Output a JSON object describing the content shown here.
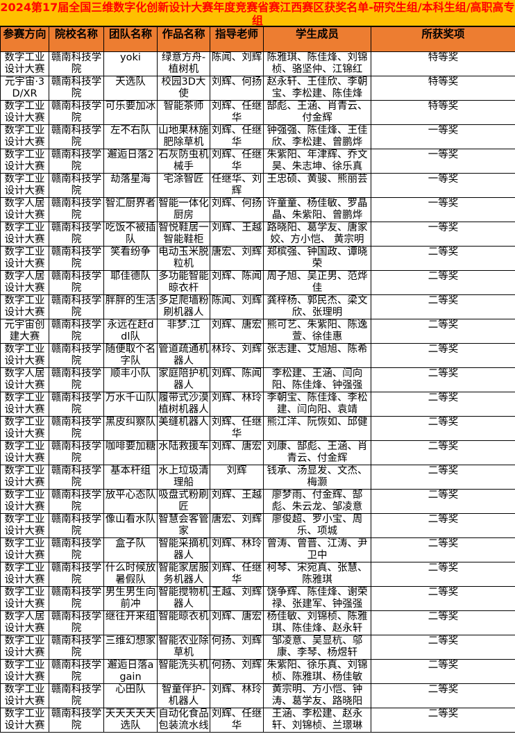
{
  "title": "2024第17届全国三维数字化创新设计大赛年度竞赛省赛江西赛区获奖名单-研究生组/本科生组/高职高专组",
  "colors": {
    "title_bg": "#FFC000",
    "title_text": "#FF0000",
    "header_bg": "#ED7D31"
  },
  "headers": [
    "参赛方向",
    "院校名称",
    "团队名称",
    "作品名称",
    "指导老师",
    "学生成员",
    "所获奖项"
  ],
  "rows": [
    [
      "数字工业设计大赛",
      "赣南科技学院",
      "yoki",
      "绿意方舟-植树机",
      "陈闻、刘辉",
      "陈雅琪、陈佳烽、刘锦桢、骆坚仲、江锦红",
      "特等奖"
    ],
    [
      "元宇宙·3D/XR",
      "赣南科技学院",
      "天选队",
      "校园3D大使",
      "刘辉、何扬",
      "赵永轩、王佳欣、李朝宝、李松建、陈佳烽",
      "特等奖"
    ],
    [
      "数字工业设计大赛",
      "赣南科技学院",
      "可乐要加冰",
      "智能茶师",
      "刘辉、任继华",
      "郜彪、王涵、肖青云、付金辉",
      "特等奖"
    ],
    [
      "数字工业设计大赛",
      "赣南科技学院",
      "左不右队",
      "山地果林施肥除草机",
      "刘辉、任继华",
      "钟强强、陈佳烽、王佳欣、李松建、曾鹏烨",
      "一等奖"
    ],
    [
      "数字工业设计大赛",
      "赣南科技学院",
      "邂逅日落2",
      "石灰防虫机械手",
      "刘辉、任继华",
      "朱紫阳、年津辉、乔文昊、朱志坤、徐乐真",
      "一等奖"
    ],
    [
      "数字工业设计大赛",
      "赣南科技学院",
      "劫落星海",
      "宅涂智匠",
      "任继华、刘辉",
      "王忠硕、黄骏、熊丽芸",
      "一等奖"
    ],
    [
      "数字人居设计大赛",
      "赣南科技学院",
      "智汇厨界者",
      "智能一体化厨房",
      "刘辉、何扬",
      "许童童、杨佳敏、罗晶晶、朱紫阳、曾鹏烨",
      "一等奖"
    ],
    [
      "数字工业设计大赛",
      "赣南科技学院",
      "吃饭不被插队",
      "智悦鞋居一智能鞋柜",
      "刘辉、王越",
      "路晓阳、葛学友、唐家姣、方小恺、 黄宗明",
      "一等奖"
    ],
    [
      "数字工业设计大赛",
      "赣南科技学院",
      "笑看纷争",
      "电动玉米脱粒机",
      "唐宏、刘辉",
      "郑槟强、钟国政、谭晓荣",
      "二等奖"
    ],
    [
      "数字人居设计大赛",
      "赣南科技学院",
      "耶佳德队",
      "多功能智能晾衣杆",
      "刘辉、陈闻",
      "周子旭、吴正男、范烨佳",
      "二等奖"
    ],
    [
      "数字工业设计大赛",
      "赣南科技学院",
      "胖胖的生活",
      "多足爬墙粉刷机器人",
      "陈闻、刘辉",
      "龚梓杨、郭民杰、梁文欣、张理明",
      "二等奖"
    ],
    [
      "元宇宙创建大赛",
      "赣南科技学院",
      "永远在赶ddl队",
      "非梦.江",
      "刘辉、唐宏",
      "熊可艺、朱紫阳、陈逸萱、徐佳惠",
      "二等奖"
    ],
    [
      "数字工业设计大赛",
      "赣南科技学院",
      "随便取个名字队",
      "管道疏通机器人",
      "林玲、刘辉",
      "张志建、艾旭旭、陈希",
      "二等奖"
    ],
    [
      "数字人居设计大赛",
      "赣南科技学院",
      "顺丰小队",
      "家庭陪护机器人",
      "刘辉、陈闻",
      "李松建、王涵、闫向阳、陈佳烽、钟强强",
      "二等奖"
    ],
    [
      "数字工业设计大赛",
      "赣南科技学院",
      "万水千山队",
      "履带式沙漠植树机器人",
      "刘辉、林玲",
      "李朝宝、陈佳烽、李松建、闫向阳、袁靖",
      "二等奖"
    ],
    [
      "数字工业设计大赛",
      "赣南科技学院",
      "黑皮纠察队",
      "美缝机器人",
      "刘辉、任继华",
      "熊江洋、阮恢如、邱健",
      "二等奖"
    ],
    [
      "数字工业设计大赛",
      "赣南科技学院",
      "咖啡要加糖",
      "水陆救援车",
      "刘辉、唐宏",
      "刘康、郜彪、王涵、肖青云、付金辉",
      "二等奖"
    ],
    [
      "数字工业设计大赛",
      "赣南科技学院",
      "基本杆组",
      "水上垃圾清理船",
      "刘辉",
      "钱承、汤显发、文杰、梅灏",
      "二等奖"
    ],
    [
      "数字工业设计大赛",
      "赣南科技学院",
      "放平心态队",
      "吸盘式粉刷匠",
      "刘辉、王越",
      "廖梦雨、付金辉、郜彪、朱云龙、邹凌意",
      "二等奖"
    ],
    [
      "数字工业设计大赛",
      "赣南科技学院",
      "像山看水队",
      "智慧会客管家",
      "唐宏、刘辉",
      "廖俊超、罗小宝、周乐、项城",
      "二等奖"
    ],
    [
      "数字工业设计大赛",
      "赣南科技学院",
      "盒子队",
      "智能采摘机器人",
      "刘辉、林玲",
      "曾涛、曾晋、江涛、尹卫中",
      "二等奖"
    ],
    [
      "数字工业设计大赛",
      "赣南科技学院",
      "什么时候放暑假队",
      "智能家居服务机器人",
      "刘辉、任继华",
      "柯琴、宋宛真、张慧、陈雅琪",
      "二等奖"
    ],
    [
      "数字工业设计大赛",
      "赣南科技学院",
      "男生男生向前冲",
      "智能搅物机器人",
      "王越、刘辉",
      "饶争辉、陈佳烽、谢荣禄、张建军、钟强强",
      "二等奖"
    ],
    [
      "数字人居设计大赛",
      "赣南科技学院",
      "继往开来组",
      "智能晾衣机",
      "刘辉、唐宏",
      "杨佳敏、刘锦桢、陈雅琪、陈佳烽、赵永轩",
      "二等奖"
    ],
    [
      "数字工业设计大赛",
      "赣南科技学院",
      "三维幻想家",
      "智能农业除草机",
      "何扬、刘辉",
      "邹凌意、吴显杭、邬康、李琴、杨煜轩",
      "二等奖"
    ],
    [
      "数字工业设计大赛",
      "赣南科技学院",
      "邂逅日落again",
      "智能洗头机",
      "何扬、刘辉",
      "朱紫阳、徐乐真、刘锦桢、陈雅琪、杨佳敏",
      "二等奖"
    ],
    [
      "数字工业设计大赛",
      "赣南科技学院",
      "心田队",
      "智童伴护-机器人",
      "刘辉、林玲",
      "黄宗明、方小恺、钟涛、葛学友、路晓阳",
      "二等奖"
    ],
    [
      "数字工业设计大赛",
      "赣南科技学院",
      "天天天天天选队",
      "自动化食品包装流水线",
      "刘辉、任继华",
      "王涵、李松建、赵永轩、刘锦桢、兰璟琳",
      "二等奖"
    ]
  ]
}
